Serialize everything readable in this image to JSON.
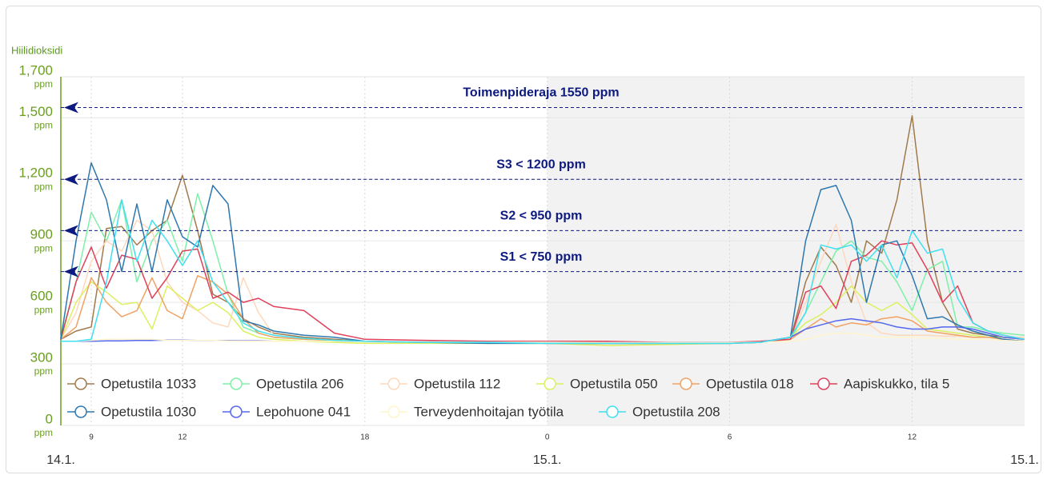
{
  "chart_data": {
    "type": "line",
    "y_title": "Hiilidioksidi",
    "y_unit": "ppm",
    "ylim": [
      0,
      1700
    ],
    "yticks": [
      0,
      300,
      600,
      900,
      {
        "value": 1200,
        "label": "1,200"
      },
      {
        "value": 1500,
        "label": "1,500"
      },
      {
        "value": 1700,
        "label": "1,700"
      }
    ],
    "xlim": [
      8,
      39.7
    ],
    "xticks": [
      9,
      12,
      18,
      {
        "value": 24,
        "label": "0"
      },
      {
        "value": 30,
        "label": "6"
      },
      {
        "value": 36,
        "label": "12"
      }
    ],
    "x_date_labels": [
      {
        "value": 8,
        "label": "14.1."
      },
      {
        "value": 24,
        "label": "15.1."
      },
      {
        "value": 39.7,
        "label": "15.1."
      }
    ],
    "plot_band": {
      "from": 24,
      "to": 39.7,
      "color": "#f2f2f2"
    },
    "plot_lines": [
      {
        "value": 1550,
        "label": "Toimenpideraja 1550 ppm"
      },
      {
        "value": 1200,
        "label": "S3 < 1200 ppm"
      },
      {
        "value": 950,
        "label": "S2 < 950 ppm"
      },
      {
        "value": 750,
        "label": "S1 < 750 ppm"
      }
    ],
    "plot_line_color": "#0d1a80",
    "grid": true,
    "x": [
      8,
      8.5,
      9,
      9.5,
      10,
      10.5,
      11,
      11.5,
      12,
      12.5,
      13,
      13.5,
      14,
      14.5,
      15,
      16,
      17,
      18,
      20,
      22,
      24,
      26,
      28,
      30,
      31,
      32,
      32.5,
      33,
      33.5,
      34,
      34.5,
      35,
      35.5,
      36,
      36.5,
      37,
      37.5,
      38,
      38.5,
      39,
      39.7
    ],
    "series": [
      {
        "name": "Opetustila 1033",
        "color": "#a07a4c",
        "values": [
          420,
          460,
          480,
          960,
          970,
          880,
          950,
          1000,
          1220,
          950,
          640,
          600,
          520,
          480,
          450,
          430,
          420,
          410,
          405,
          405,
          400,
          400,
          400,
          400,
          405,
          420,
          700,
          870,
          780,
          600,
          900,
          840,
          1100,
          1510,
          900,
          600,
          470,
          450,
          440,
          430,
          420
        ]
      },
      {
        "name": "Opetustila 206",
        "color": "#7ef0a8",
        "values": [
          430,
          700,
          1040,
          900,
          1100,
          700,
          900,
          1000,
          800,
          1130,
          900,
          640,
          480,
          450,
          430,
          420,
          415,
          410,
          405,
          405,
          400,
          400,
          400,
          400,
          405,
          420,
          550,
          700,
          850,
          900,
          820,
          800,
          700,
          560,
          760,
          800,
          480,
          480,
          460,
          450,
          440
        ]
      },
      {
        "name": "Opetustila 112",
        "color": "#ffd8bc",
        "values": [
          420,
          550,
          800,
          900,
          850,
          1000,
          950,
          700,
          600,
          560,
          500,
          480,
          720,
          550,
          440,
          420,
          415,
          410,
          405,
          405,
          400,
          400,
          400,
          400,
          405,
          420,
          600,
          800,
          980,
          700,
          500,
          450,
          440,
          440,
          440,
          435,
          435,
          430,
          430,
          430,
          430
        ]
      },
      {
        "name": "Opetustila 050",
        "color": "#dcf060",
        "values": [
          420,
          600,
          700,
          650,
          590,
          600,
          470,
          680,
          620,
          560,
          600,
          550,
          460,
          430,
          420,
          410,
          405,
          400,
          400,
          400,
          400,
          390,
          395,
          400,
          405,
          430,
          500,
          540,
          600,
          680,
          600,
          560,
          600,
          540,
          470,
          460,
          450,
          440,
          430,
          430,
          420
        ]
      },
      {
        "name": "Opetustila 018",
        "color": "#f0a264",
        "values": [
          420,
          480,
          720,
          600,
          530,
          560,
          720,
          560,
          520,
          730,
          700,
          640,
          520,
          450,
          430,
          420,
          415,
          410,
          405,
          405,
          400,
          400,
          400,
          400,
          405,
          420,
          470,
          520,
          480,
          500,
          490,
          520,
          530,
          510,
          460,
          450,
          440,
          430,
          430,
          420,
          410
        ]
      },
      {
        "name": "Aapiskukko, tila 5",
        "color": "#e0405a",
        "values": [
          420,
          700,
          870,
          670,
          830,
          810,
          620,
          720,
          850,
          860,
          620,
          650,
          600,
          620,
          580,
          560,
          450,
          420,
          415,
          410,
          410,
          410,
          405,
          405,
          410,
          420,
          650,
          680,
          570,
          800,
          830,
          900,
          880,
          890,
          760,
          600,
          680,
          500,
          460,
          440,
          420
        ]
      },
      {
        "name": "Opetustila 1030",
        "color": "#2e78ae",
        "values": [
          420,
          900,
          1280,
          1100,
          750,
          1080,
          750,
          1100,
          920,
          870,
          1170,
          1080,
          510,
          490,
          460,
          440,
          430,
          410,
          405,
          400,
          400,
          400,
          400,
          400,
          405,
          430,
          900,
          1150,
          1170,
          1000,
          600,
          880,
          900,
          730,
          520,
          530,
          490,
          460,
          440,
          420,
          410
        ]
      },
      {
        "name": "Lepohuone 041",
        "color": "#5566ee",
        "values": [
          410,
          410,
          410,
          412,
          412,
          414,
          414,
          416,
          416,
          414,
          414,
          414,
          412,
          412,
          410,
          410,
          410,
          408,
          408,
          406,
          406,
          404,
          404,
          404,
          406,
          430,
          470,
          490,
          510,
          520,
          510,
          500,
          480,
          470,
          470,
          480,
          480,
          470,
          450,
          430,
          420
        ]
      },
      {
        "name": "Terveydenhoitajan työtila",
        "color": "#fff5cc",
        "values": [
          410,
          410,
          415,
          420,
          420,
          420,
          420,
          415,
          415,
          415,
          415,
          412,
          410,
          410,
          410,
          410,
          410,
          408,
          408,
          406,
          406,
          404,
          404,
          404,
          406,
          410,
          420,
          440,
          450,
          450,
          440,
          430,
          430,
          430,
          425,
          425,
          420,
          420,
          420,
          415,
          410
        ]
      },
      {
        "name": "Opetustila 208",
        "color": "#40e0f0",
        "values": [
          410,
          410,
          420,
          700,
          1100,
          800,
          1000,
          900,
          780,
          900,
          700,
          600,
          500,
          460,
          440,
          425,
          415,
          410,
          405,
          405,
          400,
          400,
          400,
          400,
          405,
          430,
          550,
          880,
          860,
          880,
          800,
          880,
          720,
          950,
          840,
          860,
          620,
          500,
          460,
          440,
          420
        ]
      }
    ]
  }
}
